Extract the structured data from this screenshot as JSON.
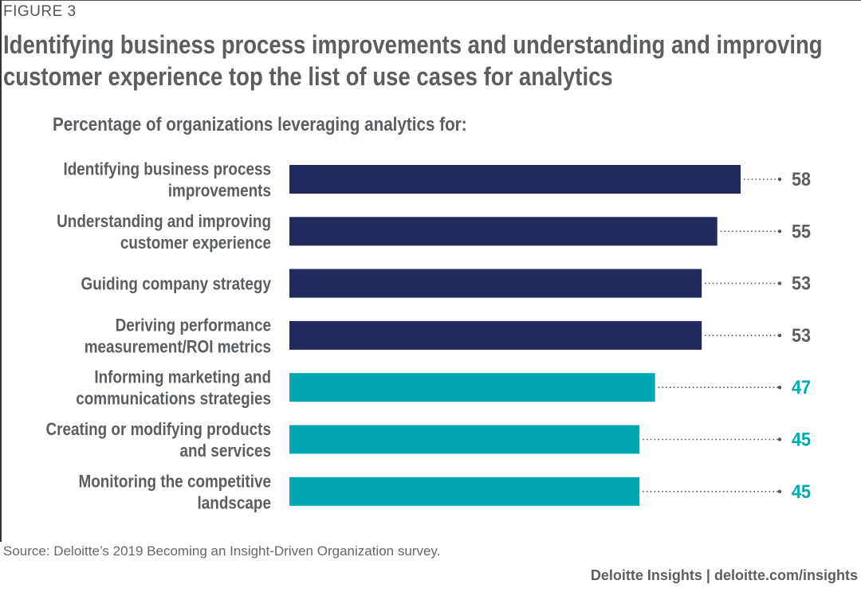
{
  "figure_label": "FIGURE 3",
  "title_line1": "Identifying business process improvements and understanding and improving",
  "title_line2": "customer experience top the list of use cases for analytics",
  "source": "Source: Deloitte’s 2019 Becoming an Insight-Driven Organization survey.",
  "footer": "Deloitte Insights | deloitte.com/insights",
  "colors": {
    "navy": "#222a5e",
    "teal": "#00a8b5",
    "text": "#5b5e61",
    "dots": "#555555"
  },
  "chart_data": {
    "type": "bar",
    "orientation": "horizontal",
    "title": "Percentage of organizations leveraging analytics for:",
    "xlim": [
      0,
      60
    ],
    "categories": [
      [
        "Identifying business process",
        "improvements"
      ],
      [
        "Understanding and improving",
        "customer experience"
      ],
      [
        "Guiding company strategy"
      ],
      [
        "Deriving performance",
        "measurement/ROI metrics"
      ],
      [
        "Informing marketing and",
        "communications strategies"
      ],
      [
        "Creating or modifying products",
        "and services"
      ],
      [
        "Monitoring the competitive",
        "landscape"
      ]
    ],
    "values": [
      58,
      55,
      53,
      53,
      47,
      45,
      45
    ],
    "bar_colors": [
      "#222a5e",
      "#222a5e",
      "#222a5e",
      "#222a5e",
      "#00a8b5",
      "#00a8b5",
      "#00a8b5"
    ],
    "value_colors": [
      "#5b5e61",
      "#5b5e61",
      "#5b5e61",
      "#5b5e61",
      "#00a8b5",
      "#00a8b5",
      "#00a8b5"
    ]
  }
}
